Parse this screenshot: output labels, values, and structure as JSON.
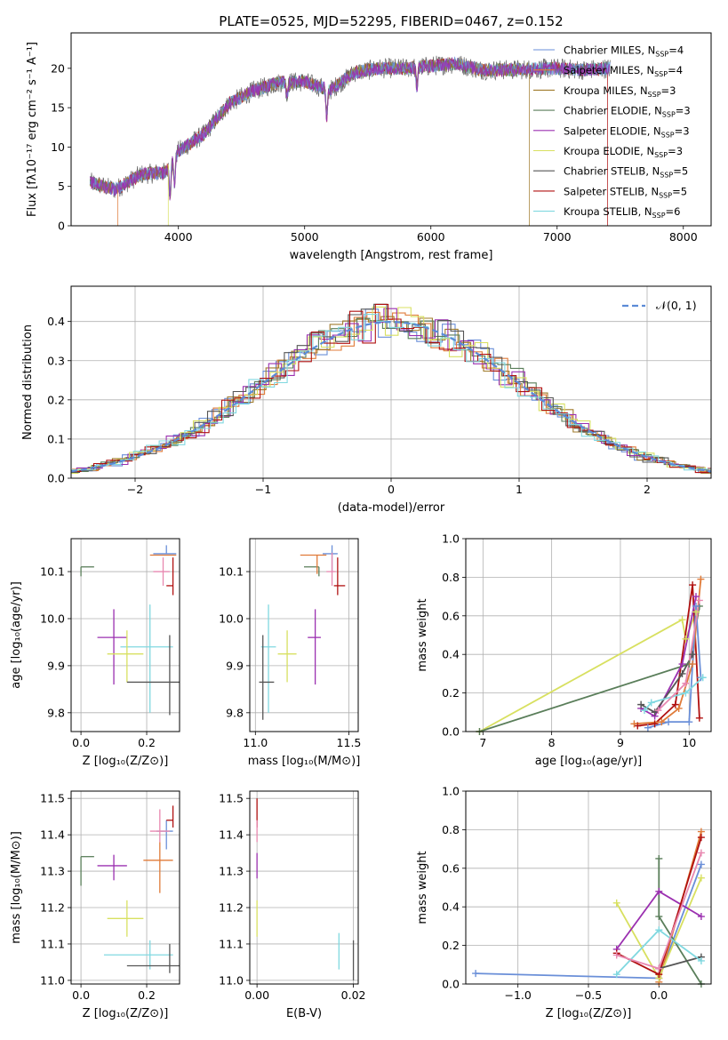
{
  "figure_title": "PLATE=0525, MJD=52295, FIBERID=0467, z=0.152",
  "palette": {
    "Chabrier MILES": "#6a8fd8",
    "Salpeter MILES": "#e07b39",
    "Kroupa MILES": "#a07b2c",
    "Chabrier ELODIE": "#5a7e5a",
    "Salpeter ELODIE": "#9b30b0",
    "Kroupa ELODIE": "#d8e060",
    "Chabrier STELIB": "#555555",
    "Salpeter STELIB": "#b01010",
    "Kroupa STELIB": "#80d8e0",
    "pink": "#e888b0",
    "grid": "#b0b0b0"
  },
  "chart_data": [
    {
      "id": "spectrum",
      "type": "line",
      "title": "PLATE=0525, MJD=52295, FIBERID=0467, z=0.152",
      "xlabel": "wavelength [Angstrom, rest frame]",
      "ylabel": "Flux [fλ10⁻¹⁷ erg cm⁻² s⁻¹ A⁻¹]",
      "xlim": [
        3150,
        8220
      ],
      "ylim": [
        0,
        24.5
      ],
      "xticks": [
        4000,
        5000,
        6000,
        7000,
        8000
      ],
      "yticks": [
        0,
        5,
        10,
        15,
        20
      ],
      "grid": false,
      "legend_position": "top-right",
      "legend": [
        {
          "label": "Chabrier MILES, N",
          "sub": "SSP",
          "tail": "=4"
        },
        {
          "label": "Salpeter MILES, N",
          "sub": "SSP",
          "tail": "=4"
        },
        {
          "label": "Kroupa MILES, N",
          "sub": "SSP",
          "tail": "=3"
        },
        {
          "label": "Chabrier ELODIE, N",
          "sub": "SSP",
          "tail": "=3"
        },
        {
          "label": "Salpeter ELODIE, N",
          "sub": "SSP",
          "tail": "=3"
        },
        {
          "label": "Kroupa ELODIE, N",
          "sub": "SSP",
          "tail": "=3"
        },
        {
          "label": "Chabrier STELIB, N",
          "sub": "SSP",
          "tail": "=5"
        },
        {
          "label": "Salpeter STELIB, N",
          "sub": "SSP",
          "tail": "=5"
        },
        {
          "label": "Kroupa STELIB, N",
          "sub": "SSP",
          "tail": "=6"
        }
      ],
      "continuum": [
        [
          3300,
          5.5
        ],
        [
          3500,
          4.6
        ],
        [
          3700,
          6.5
        ],
        [
          3900,
          6.8
        ],
        [
          4000,
          9.5
        ],
        [
          4200,
          11.6
        ],
        [
          4400,
          15.5
        ],
        [
          4600,
          17.2
        ],
        [
          4800,
          18.2
        ],
        [
          5000,
          18.3
        ],
        [
          5200,
          17.2
        ],
        [
          5400,
          19.5
        ],
        [
          5600,
          20.0
        ],
        [
          5800,
          20.0
        ],
        [
          6000,
          20.3
        ],
        [
          6200,
          20.6
        ],
        [
          6400,
          19.8
        ],
        [
          6600,
          19.8
        ],
        [
          6800,
          19.9
        ],
        [
          7000,
          20.0
        ],
        [
          7200,
          19.8
        ],
        [
          7400,
          20.0
        ]
      ],
      "dips": [
        [
          3934,
          4.0
        ],
        [
          3969,
          3.5
        ],
        [
          4861,
          2.0
        ],
        [
          5175,
          3.5
        ],
        [
          5890,
          2.8
        ]
      ],
      "model_drops": [
        {
          "series": "Kroupa ELODIE",
          "x": 3920
        },
        {
          "series": "Salpeter MILES",
          "x": 3520
        },
        {
          "series": "Kroupa MILES",
          "x": 6780
        },
        {
          "series": "Salpeter STELIB",
          "x": 7400
        }
      ]
    },
    {
      "id": "residuals",
      "type": "histogram",
      "xlabel": "(data-model)/error",
      "ylabel": "Normed distribution",
      "xlim": [
        -2.5,
        2.5
      ],
      "ylim": [
        0,
        0.49
      ],
      "xticks": [
        -2,
        -1,
        0,
        1,
        2
      ],
      "yticks": [
        0.0,
        0.1,
        0.2,
        0.3,
        0.4
      ],
      "grid": true,
      "legend_position": "top-right",
      "legend_label": "𝒩(0, 1)",
      "normal_curve": {
        "mean": 0,
        "sigma": 1
      }
    },
    {
      "id": "age-vs-Z",
      "type": "scatter",
      "xlabel": "Z [log₁₀(Z/Z⊙)]",
      "ylabel": "age  [log₁₀(age/yr)]",
      "xlim": [
        -0.03,
        0.3
      ],
      "ylim": [
        9.76,
        10.17
      ],
      "xticks": [
        0.0,
        0.2
      ],
      "yticks": [
        9.8,
        9.9,
        10.0,
        10.1
      ],
      "grid": true,
      "points": [
        {
          "series": "Chabrier ELODIE",
          "x": 0.0,
          "y": 10.11,
          "xerr": [
            0.0,
            0.04
          ],
          "yerr": [
            0.02,
            0.0
          ]
        },
        {
          "series": "Salpeter MILES",
          "x": 0.27,
          "y": 10.135,
          "xerr": [
            0.06,
            0.02
          ],
          "yerr": [
            0.0,
            0.0
          ]
        },
        {
          "series": "Chabrier MILES",
          "x": 0.26,
          "y": 10.138,
          "xerr": [
            0.04,
            0.03
          ],
          "yerr": [
            0.0,
            0.018
          ]
        },
        {
          "series": "pink",
          "x": 0.25,
          "y": 10.1,
          "xerr": [
            0.03,
            0.02
          ],
          "yerr": [
            0.03,
            0.03
          ]
        },
        {
          "series": "Salpeter STELIB",
          "x": 0.28,
          "y": 10.07,
          "xerr": [
            0.02,
            0.0
          ],
          "yerr": [
            0.02,
            0.06
          ]
        },
        {
          "series": "Salpeter ELODIE",
          "x": 0.1,
          "y": 9.96,
          "xerr": [
            0.05,
            0.04
          ],
          "yerr": [
            0.1,
            0.06
          ]
        },
        {
          "series": "Kroupa STELIB",
          "x": 0.21,
          "y": 9.94,
          "xerr": [
            0.09,
            0.07
          ],
          "yerr": [
            0.14,
            0.09
          ]
        },
        {
          "series": "Kroupa ELODIE",
          "x": 0.14,
          "y": 9.925,
          "xerr": [
            0.06,
            0.05
          ],
          "yerr": [
            0.06,
            0.05
          ]
        },
        {
          "series": "Chabrier STELIB",
          "x": 0.27,
          "y": 9.865,
          "xerr": [
            0.13,
            0.03
          ],
          "yerr": [
            0.07,
            0.1
          ]
        }
      ]
    },
    {
      "id": "age-vs-mass",
      "type": "scatter",
      "xlabel": "mass [log₁₀(M/M⊙)]",
      "ylabel": "",
      "xlim": [
        10.97,
        11.55
      ],
      "ylim": [
        9.76,
        10.17
      ],
      "xticks": [
        11.0,
        11.5
      ],
      "yticks": [
        9.8,
        9.9,
        10.0,
        10.1
      ],
      "grid": true,
      "points": [
        {
          "series": "Chabrier ELODIE",
          "x": 11.34,
          "y": 10.11,
          "xerr": [
            0.08,
            0.0
          ],
          "yerr": [
            0.02,
            0.0
          ]
        },
        {
          "series": "Salpeter MILES",
          "x": 11.33,
          "y": 10.135,
          "xerr": [
            0.09,
            0.05
          ],
          "yerr": [
            0.04,
            0.0
          ]
        },
        {
          "series": "Chabrier MILES",
          "x": 11.41,
          "y": 10.138,
          "xerr": [
            0.05,
            0.03
          ],
          "yerr": [
            0.04,
            0.018
          ]
        },
        {
          "series": "pink",
          "x": 11.41,
          "y": 10.1,
          "xerr": [
            0.03,
            0.02
          ],
          "yerr": [
            0.03,
            0.04
          ]
        },
        {
          "series": "Salpeter STELIB",
          "x": 11.44,
          "y": 10.07,
          "xerr": [
            0.02,
            0.04
          ],
          "yerr": [
            0.02,
            0.06
          ]
        },
        {
          "series": "Salpeter ELODIE",
          "x": 11.32,
          "y": 9.96,
          "xerr": [
            0.04,
            0.03
          ],
          "yerr": [
            0.1,
            0.06
          ]
        },
        {
          "series": "Kroupa STELIB",
          "x": 11.07,
          "y": 9.94,
          "xerr": [
            0.04,
            0.04
          ],
          "yerr": [
            0.14,
            0.09
          ]
        },
        {
          "series": "Kroupa ELODIE",
          "x": 11.17,
          "y": 9.925,
          "xerr": [
            0.05,
            0.05
          ],
          "yerr": [
            0.06,
            0.05
          ]
        },
        {
          "series": "Chabrier STELIB",
          "x": 11.04,
          "y": 9.865,
          "xerr": [
            0.02,
            0.06
          ],
          "yerr": [
            0.08,
            0.1
          ]
        }
      ]
    },
    {
      "id": "weight-vs-age",
      "type": "line",
      "xlabel": "age  [log₁₀(age/yr)]",
      "ylabel": "mass weight",
      "xlim": [
        6.75,
        10.32
      ],
      "ylim": [
        0,
        1
      ],
      "xticks": [
        7,
        8,
        9,
        10
      ],
      "yticks": [
        0.0,
        0.2,
        0.4,
        0.6,
        0.8,
        1.0
      ],
      "grid": true,
      "series": [
        {
          "series": "Kroupa ELODIE",
          "x": [
            6.95,
            9.9,
            9.95,
            10.1
          ],
          "y": [
            0.0,
            0.58,
            0.48,
            0.62
          ]
        },
        {
          "series": "Chabrier ELODIE",
          "x": [
            6.95,
            10.0,
            10.15
          ],
          "y": [
            0.0,
            0.35,
            0.65
          ]
        },
        {
          "series": "Salpeter STELIB",
          "x": [
            9.25,
            9.5,
            9.8,
            10.05,
            10.15
          ],
          "y": [
            0.03,
            0.04,
            0.14,
            0.76,
            0.07
          ]
        },
        {
          "series": "Salpeter MILES",
          "x": [
            9.2,
            9.6,
            9.85,
            10.05,
            10.17
          ],
          "y": [
            0.04,
            0.05,
            0.12,
            0.35,
            0.79
          ]
        },
        {
          "series": "Chabrier MILES",
          "x": [
            9.4,
            9.7,
            10.0,
            10.1,
            10.17
          ],
          "y": [
            0.02,
            0.05,
            0.05,
            0.65,
            0.28
          ]
        },
        {
          "series": "Salpeter ELODIE",
          "x": [
            9.3,
            9.5,
            9.9,
            10.1
          ],
          "y": [
            0.12,
            0.08,
            0.35,
            0.7
          ]
        },
        {
          "series": "Chabrier STELIB",
          "x": [
            9.3,
            9.5,
            9.9,
            10.05
          ],
          "y": [
            0.14,
            0.1,
            0.3,
            0.4
          ]
        },
        {
          "series": "Kroupa STELIB",
          "x": [
            9.35,
            9.45,
            9.95,
            10.2
          ],
          "y": [
            0.11,
            0.15,
            0.2,
            0.28
          ]
        },
        {
          "series": "pink",
          "x": [
            9.55,
            9.95,
            10.15
          ],
          "y": [
            0.11,
            0.25,
            0.68
          ]
        }
      ]
    },
    {
      "id": "mass-vs-Z",
      "type": "scatter",
      "xlabel": "Z [log₁₀(Z/Z⊙)]",
      "ylabel": "mass [log₁₀(M/M⊙)]",
      "xlim": [
        -0.03,
        0.3
      ],
      "ylim": [
        10.99,
        11.52
      ],
      "xticks": [
        0.0,
        0.2
      ],
      "yticks": [
        11.0,
        11.1,
        11.2,
        11.3,
        11.4,
        11.5
      ],
      "grid": true,
      "points": [
        {
          "series": "Chabrier ELODIE",
          "x": 0.0,
          "y": 11.34,
          "xerr": [
            0.0,
            0.04
          ],
          "yerr": [
            0.08,
            0.0
          ]
        },
        {
          "series": "Salpeter MILES",
          "x": 0.24,
          "y": 11.33,
          "xerr": [
            0.05,
            0.04
          ],
          "yerr": [
            0.09,
            0.05
          ]
        },
        {
          "series": "Chabrier MILES",
          "x": 0.26,
          "y": 11.41,
          "xerr": [
            0.03,
            0.02
          ],
          "yerr": [
            0.05,
            0.03
          ]
        },
        {
          "series": "pink",
          "x": 0.24,
          "y": 11.41,
          "xerr": [
            0.03,
            0.03
          ],
          "yerr": [
            0.03,
            0.06
          ]
        },
        {
          "series": "Salpeter STELIB",
          "x": 0.28,
          "y": 11.44,
          "xerr": [
            0.02,
            0.0
          ],
          "yerr": [
            0.02,
            0.04
          ]
        },
        {
          "series": "Salpeter ELODIE",
          "x": 0.1,
          "y": 11.315,
          "xerr": [
            0.05,
            0.04
          ],
          "yerr": [
            0.04,
            0.03
          ]
        },
        {
          "series": "Kroupa ELODIE",
          "x": 0.14,
          "y": 11.17,
          "xerr": [
            0.06,
            0.05
          ],
          "yerr": [
            0.05,
            0.05
          ]
        },
        {
          "series": "Kroupa STELIB",
          "x": 0.21,
          "y": 11.07,
          "xerr": [
            0.14,
            0.07
          ],
          "yerr": [
            0.04,
            0.04
          ]
        },
        {
          "series": "Chabrier STELIB",
          "x": 0.27,
          "y": 11.04,
          "xerr": [
            0.13,
            0.03
          ],
          "yerr": [
            0.02,
            0.06
          ]
        }
      ]
    },
    {
      "id": "mass-vs-EBV",
      "type": "scatter",
      "xlabel": "E(B-V)",
      "ylabel": "",
      "xlim": [
        -0.0015,
        0.021
      ],
      "ylim": [
        10.99,
        11.52
      ],
      "xticks": [
        0.0,
        0.02
      ],
      "yticks": [
        11.0,
        11.1,
        11.2,
        11.3,
        11.4,
        11.5
      ],
      "grid": true,
      "points": [
        {
          "series": "Salpeter STELIB",
          "x": 0.0,
          "y": 11.44,
          "xerr": [
            0,
            0
          ],
          "yerr": [
            0.02,
            0.06
          ]
        },
        {
          "series": "Salpeter ELODIE",
          "x": 0.0,
          "y": 11.32,
          "xerr": [
            0,
            0
          ],
          "yerr": [
            0.04,
            0.03
          ]
        },
        {
          "series": "pink",
          "x": 0.0,
          "y": 11.41,
          "xerr": [
            0,
            0
          ],
          "yerr": [
            0.03,
            0.03
          ]
        },
        {
          "series": "Kroupa ELODIE",
          "x": 0.0,
          "y": 11.17,
          "xerr": [
            0,
            0
          ],
          "yerr": [
            0.05,
            0.05
          ]
        },
        {
          "series": "Kroupa STELIB",
          "x": 0.017,
          "y": 11.07,
          "xerr": [
            0,
            0
          ],
          "yerr": [
            0.04,
            0.06
          ]
        },
        {
          "series": "Chabrier STELIB",
          "x": 0.02,
          "y": 11.04,
          "xerr": [
            0,
            0
          ],
          "yerr": [
            0.04,
            0.07
          ]
        }
      ]
    },
    {
      "id": "weight-vs-Z",
      "type": "line",
      "xlabel": "Z [log₁₀(Z/Z⊙)]",
      "ylabel": "mass weight",
      "xlim": [
        -1.37,
        0.37
      ],
      "ylim": [
        0,
        1
      ],
      "xticks": [
        -1.0,
        -0.5,
        0.0
      ],
      "yticks": [
        0.0,
        0.2,
        0.4,
        0.6,
        0.8,
        1.0
      ],
      "grid": true,
      "series": [
        {
          "series": "Chabrier MILES",
          "x": [
            -1.3,
            0.0,
            0.3
          ],
          "y": [
            0.055,
            0.03,
            0.62
          ]
        },
        {
          "series": "Salpeter MILES",
          "x": [
            0.0,
            0.3
          ],
          "y": [
            0.01,
            0.79
          ]
        },
        {
          "series": "Kroupa ELODIE",
          "x": [
            -0.3,
            0.0,
            0.3
          ],
          "y": [
            0.42,
            0.03,
            0.55
          ]
        },
        {
          "series": "Chabrier ELODIE",
          "x": [
            0.0,
            0.0,
            0.3
          ],
          "y": [
            0.65,
            0.35,
            0.0
          ]
        },
        {
          "series": "Salpeter ELODIE",
          "x": [
            -0.3,
            0.0,
            0.3
          ],
          "y": [
            0.18,
            0.48,
            0.35
          ]
        },
        {
          "series": "Salpeter STELIB",
          "x": [
            -0.3,
            0.0,
            0.3
          ],
          "y": [
            0.16,
            0.05,
            0.76
          ]
        },
        {
          "series": "Chabrier STELIB",
          "x": [
            0.0,
            0.3
          ],
          "y": [
            0.08,
            0.14
          ]
        },
        {
          "series": "Kroupa STELIB",
          "x": [
            -0.3,
            0.0,
            0.3
          ],
          "y": [
            0.05,
            0.28,
            0.12
          ]
        },
        {
          "series": "pink",
          "x": [
            -0.3,
            0.0,
            0.3
          ],
          "y": [
            0.15,
            0.08,
            0.68
          ]
        }
      ]
    }
  ]
}
